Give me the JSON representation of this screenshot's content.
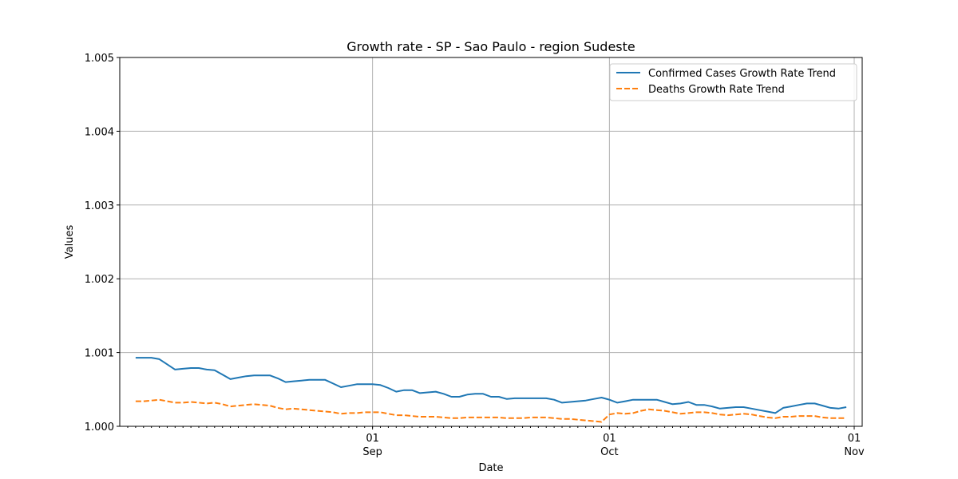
{
  "chart_data": {
    "type": "line",
    "title": "Growth rate - SP - Sao Paulo - region Sudeste",
    "xlabel": "Date",
    "ylabel": "Values",
    "x_start": "2020-08-02",
    "x_end": "2020-11-01",
    "xlim": [
      "2020-08-01",
      "2020-11-01"
    ],
    "ylim": [
      1.0,
      1.005
    ],
    "y_ticks": [
      "1.000",
      "1.001",
      "1.002",
      "1.003",
      "1.004",
      "1.005"
    ],
    "x_ticks": [
      {
        "date": "2020-09-01",
        "day": "01",
        "month": "Sep"
      },
      {
        "date": "2020-10-01",
        "day": "01",
        "month": "Oct"
      },
      {
        "date": "2020-11-01",
        "day": "01",
        "month": "Nov"
      }
    ],
    "grid": true,
    "legend_position": "top-right",
    "series": [
      {
        "name": "Confirmed Cases Growth Rate Trend",
        "color": "#1f77b4",
        "style": "solid",
        "values": [
          1.00093,
          1.00093,
          1.00093,
          1.00091,
          1.00084,
          1.00077,
          1.00078,
          1.00079,
          1.00079,
          1.00077,
          1.00076,
          1.0007,
          1.00064,
          1.00066,
          1.00068,
          1.00069,
          1.00069,
          1.00069,
          1.00065,
          1.0006,
          1.00061,
          1.00062,
          1.00063,
          1.00063,
          1.00063,
          1.00058,
          1.00053,
          1.00055,
          1.00057,
          1.00057,
          1.00057,
          1.00056,
          1.00052,
          1.00047,
          1.00049,
          1.00049,
          1.00045,
          1.00046,
          1.00047,
          1.00044,
          1.0004,
          1.0004,
          1.00043,
          1.00044,
          1.00044,
          1.0004,
          1.0004,
          1.00037,
          1.00038,
          1.00038,
          1.00038,
          1.00038,
          1.00038,
          1.00036,
          1.00032,
          1.00033,
          1.00034,
          1.00035,
          1.00037,
          1.00039,
          1.00036,
          1.00032,
          1.00034,
          1.00036,
          1.00036,
          1.00036,
          1.00036,
          1.00033,
          1.0003,
          1.00031,
          1.00033,
          1.00029,
          1.00029,
          1.00027,
          1.00024,
          1.00025,
          1.00026,
          1.00026,
          1.00024,
          1.00022,
          1.0002,
          1.00018,
          1.00025,
          1.00027,
          1.00029,
          1.00031,
          1.00031,
          1.00028,
          1.00025,
          1.00024,
          1.00026
        ]
      },
      {
        "name": "Deaths Growth Rate Trend",
        "color": "#ff7f0e",
        "style": "dashed",
        "values": [
          1.00034,
          1.00034,
          1.00035,
          1.00036,
          1.00034,
          1.00032,
          1.00032,
          1.00033,
          1.00032,
          1.00031,
          1.00032,
          1.0003,
          1.00027,
          1.00028,
          1.00029,
          1.0003,
          1.00029,
          1.00028,
          1.00025,
          1.00023,
          1.00024,
          1.00023,
          1.00022,
          1.00021,
          1.0002,
          1.00019,
          1.00017,
          1.00018,
          1.00018,
          1.00019,
          1.00019,
          1.00019,
          1.00017,
          1.00015,
          1.00015,
          1.00014,
          1.00013,
          1.00013,
          1.00013,
          1.00012,
          1.00011,
          1.00011,
          1.00012,
          1.00012,
          1.00012,
          1.00012,
          1.00012,
          1.00011,
          1.00011,
          1.00011,
          1.00012,
          1.00012,
          1.00012,
          1.00011,
          1.0001,
          1.0001,
          1.00009,
          1.00008,
          1.00007,
          1.00006,
          1.00016,
          1.00018,
          1.00017,
          1.00018,
          1.00021,
          1.00023,
          1.00022,
          1.00021,
          1.00019,
          1.00017,
          1.00018,
          1.00019,
          1.00019,
          1.00018,
          1.00016,
          1.00015,
          1.00016,
          1.00017,
          1.00016,
          1.00014,
          1.00012,
          1.00011,
          1.00013,
          1.00013,
          1.00014,
          1.00014,
          1.00014,
          1.00012,
          1.00011,
          1.00011,
          1.00011
        ]
      }
    ]
  }
}
